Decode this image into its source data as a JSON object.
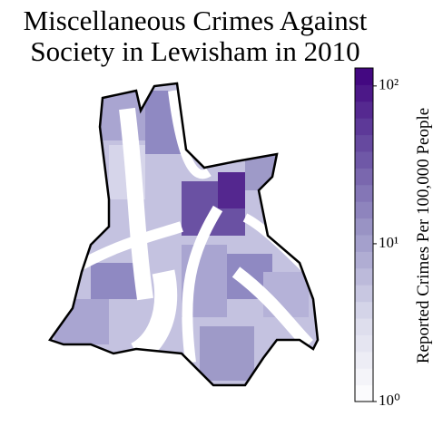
{
  "title_lines": [
    "Miscellaneous Crimes Against",
    "Society in Lewisham in 2010"
  ],
  "colorbar": {
    "label": "Reported Crimes Per 100,000 People",
    "log_scale": true,
    "lim": [
      1,
      130
    ],
    "ticks": [
      {
        "value": 1,
        "label": "10⁰"
      },
      {
        "value": 10,
        "label": "10¹"
      },
      {
        "value": 100,
        "label": "10²"
      }
    ],
    "levels": 20,
    "colormap": [
      "#ffffff",
      "#dadaeb",
      "#9e9ac8",
      "#6a51a3",
      "#3f007d"
    ]
  }
}
